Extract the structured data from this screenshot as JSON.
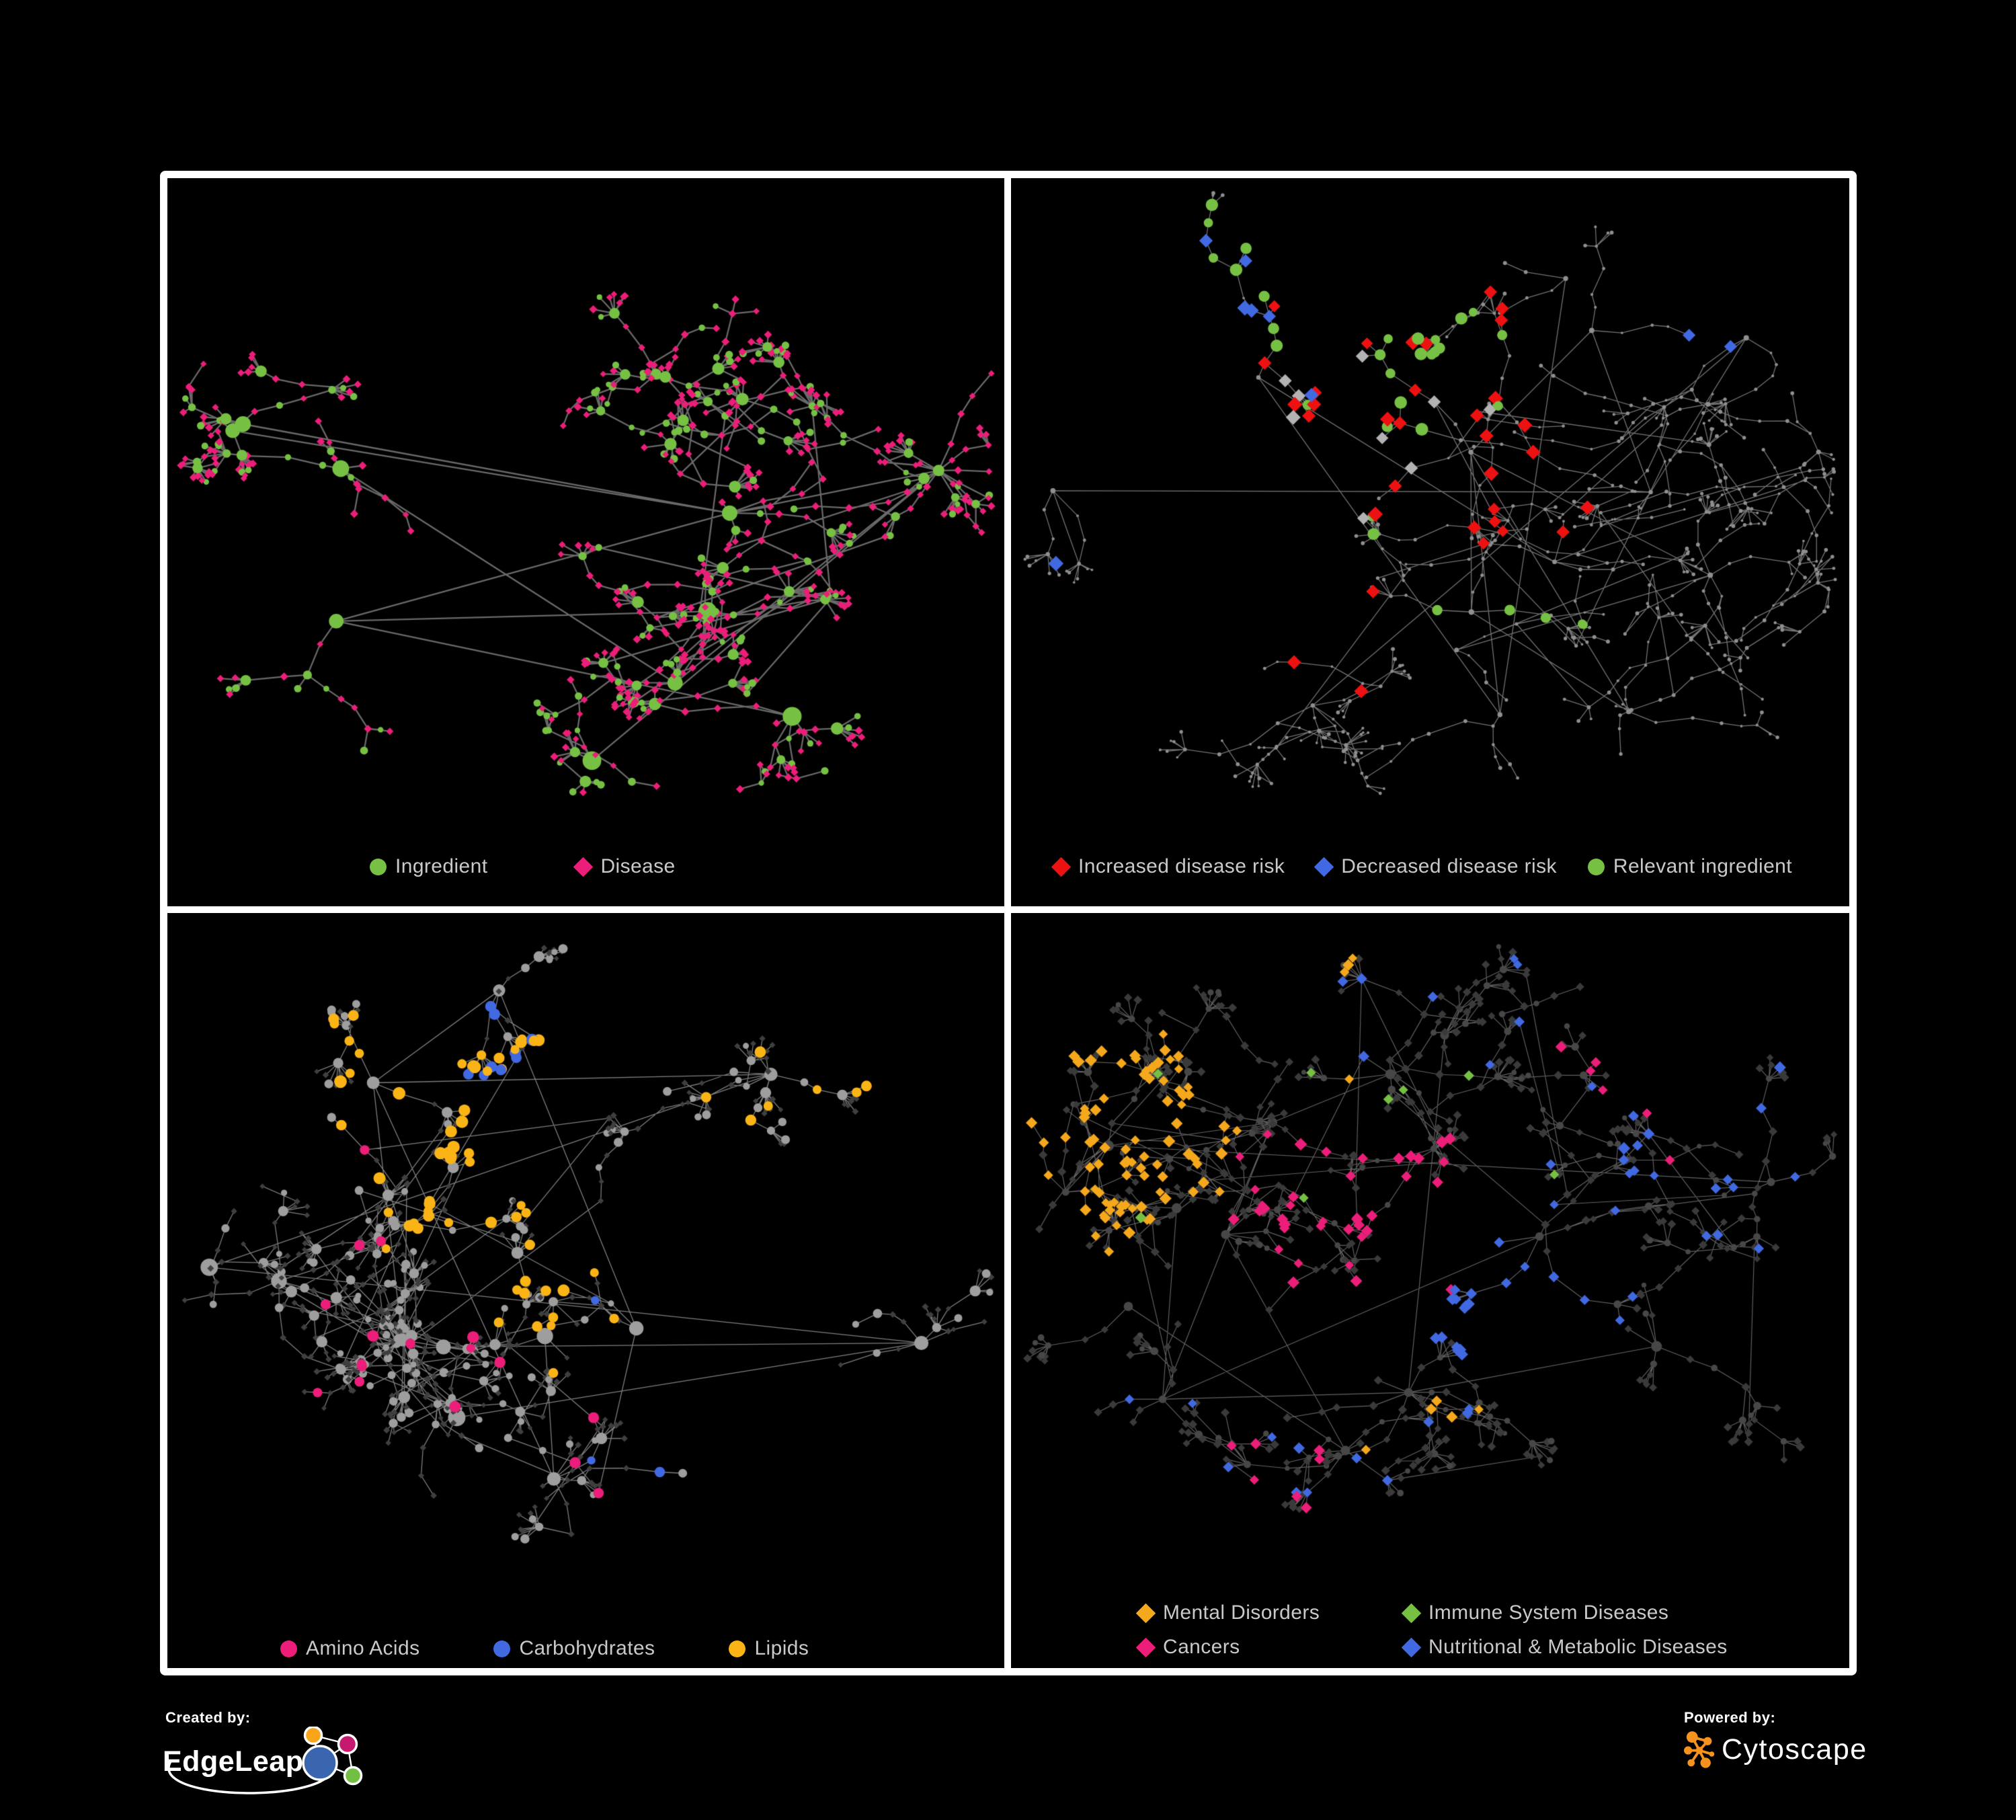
{
  "page": {
    "background": "#000000",
    "frame_color": "#ffffff",
    "legend_text_color": "#c9c9c9"
  },
  "footer": {
    "created_by": {
      "label": "Created by:",
      "brand": "EdgeLeap",
      "node_colors": [
        "#f9a51a",
        "#c6186e",
        "#3a66b0",
        "#72bf44"
      ]
    },
    "powered_by": {
      "label": "Powered by:",
      "brand": "Cytoscape",
      "accent": "#f6921e"
    }
  },
  "chart_data": [
    {
      "type": "network",
      "panel": "top_left",
      "legend": [
        {
          "label": "Ingredient",
          "color": "#76c043",
          "shape": "circle"
        },
        {
          "label": "Disease",
          "color": "#ec1e79",
          "shape": "diamond"
        }
      ],
      "style": {
        "edge_color": "#6f6f6f",
        "edge_width": 2.3,
        "edge_alpha": 0.95
      },
      "seed": 7,
      "nodes": 650,
      "clusters": 10,
      "gen": {
        "chain": [
          1,
          4
        ],
        "fan_p": 0.6,
        "fan": [
          3,
          9
        ],
        "cross": 0.05,
        "hub_bias": 0.4
      },
      "base": {
        "hub_degree": 5,
        "hub_scale": 1.5,
        "major": {
          "shape": "circle",
          "color": "#76c043",
          "size": [
            5.5,
            9.5
          ]
        },
        "minor": [
          {
            "shape": "diamond",
            "color": "#ec1e79",
            "size": [
              3.5,
              4.6
            ],
            "w": 0.7
          },
          {
            "shape": "circle",
            "color": "#76c043",
            "size": [
              4,
              6
            ],
            "w": 0.3
          }
        ]
      },
      "highlights": []
    },
    {
      "type": "network",
      "panel": "top_right",
      "legend": [
        {
          "label": "Increased disease risk",
          "color": "#ee1111",
          "shape": "diamond"
        },
        {
          "label": "Decreased disease risk",
          "color": "#4169e1",
          "shape": "diamond"
        },
        {
          "label": "Relevant ingredient",
          "color": "#76c043",
          "shape": "circle"
        }
      ],
      "style": {
        "edge_color": "#8f8f8f",
        "edge_width": 1.3,
        "edge_alpha": 0.8
      },
      "seed": 23,
      "nodes": 640,
      "clusters": 14,
      "gen": {
        "chain": [
          2,
          5
        ],
        "fan_p": 0.5,
        "fan": [
          3,
          9
        ],
        "cross": 0.05,
        "hub_bias": 0.32
      },
      "base": {
        "hub_degree": 6,
        "hub_scale": 1.3,
        "major": {
          "shape": "circle",
          "color": "#8f8f8f",
          "size": [
            2.4,
            3.6
          ]
        },
        "minor": [
          {
            "shape": "circle",
            "color": "#8f8f8f",
            "size": [
              1.8,
              3
            ],
            "w": 1
          }
        ]
      },
      "highlights": [
        {
          "shape": "diamond",
          "color": "#ee1111",
          "size": [
            6.5,
            8.5
          ],
          "count": 26,
          "center": [
            0.4,
            0.3
          ],
          "spread": 0.24
        },
        {
          "shape": "diamond",
          "color": "#ee1111",
          "size": [
            6.5,
            8
          ],
          "count": 4,
          "center": [
            0.6,
            0.5
          ],
          "spread": 0.1
        },
        {
          "shape": "diamond",
          "color": "#ee1111",
          "size": [
            6.5,
            8
          ],
          "count": 3,
          "center": [
            0.38,
            0.62
          ],
          "spread": 0.08
        },
        {
          "shape": "diamond",
          "color": "#4169e1",
          "size": [
            6.5,
            8.5
          ],
          "count": 7,
          "center": [
            0.16,
            0.27
          ],
          "spread": 0.1
        },
        {
          "shape": "diamond",
          "color": "#4169e1",
          "size": [
            6.5,
            8
          ],
          "count": 2,
          "center": [
            0.875,
            0.17
          ],
          "spread": 0.035
        },
        {
          "shape": "diamond",
          "color": "#b3b3b3",
          "size": [
            6.5,
            8.5
          ],
          "count": 9,
          "center": [
            0.33,
            0.33
          ],
          "spread": 0.26
        },
        {
          "shape": "circle",
          "color": "#76c043",
          "size": [
            6.5,
            9.5
          ],
          "count": 27,
          "center": [
            0.34,
            0.27
          ],
          "spread": 0.24
        },
        {
          "shape": "circle",
          "color": "#76c043",
          "size": [
            6,
            8.5
          ],
          "count": 5,
          "center": [
            0.6,
            0.6
          ],
          "spread": 0.12
        }
      ]
    },
    {
      "type": "network",
      "panel": "bottom_left",
      "legend": [
        {
          "label": "Amino Acids",
          "color": "#ec1e79",
          "shape": "circle"
        },
        {
          "label": "Carbohydrates",
          "color": "#4169e1",
          "shape": "circle"
        },
        {
          "label": "Lipids",
          "color": "#fbb415",
          "shape": "circle"
        }
      ],
      "style": {
        "edge_color": "#a8a8a8",
        "edge_width": 1.3,
        "edge_alpha": 0.75
      },
      "seed": 41,
      "nodes": 700,
      "clusters": 12,
      "gen": {
        "chain": [
          1,
          4
        ],
        "fan_p": 0.55,
        "fan": [
          3,
          10
        ],
        "cross": 0.08,
        "hub_bias": 0.36
      },
      "base": {
        "hub_degree": 5,
        "hub_scale": 1.5,
        "major": {
          "shape": "circle",
          "color": "#9e9e9e",
          "size": [
            6,
            9
          ]
        },
        "minor": [
          {
            "shape": "diamond",
            "color": "#3f3f3f",
            "size": [
              2.8,
              3.8
            ],
            "w": 0.74
          },
          {
            "shape": "circle",
            "color": "#9e9e9e",
            "size": [
              4.5,
              7
            ],
            "w": 0.26
          }
        ]
      },
      "highlights": [
        {
          "shape": "circle",
          "color": "#fbb415",
          "size": [
            6.5,
            9.5
          ],
          "count": 46,
          "center": [
            0.32,
            0.24
          ],
          "spread": 0.2
        },
        {
          "shape": "circle",
          "color": "#fbb415",
          "size": [
            6.5,
            9
          ],
          "count": 13,
          "center": [
            0.52,
            0.52
          ],
          "spread": 0.13
        },
        {
          "shape": "circle",
          "color": "#fbb415",
          "size": [
            6,
            8.5
          ],
          "count": 7,
          "center": [
            0.75,
            0.3
          ],
          "spread": 0.2
        },
        {
          "shape": "circle",
          "color": "#4169e1",
          "size": [
            6.5,
            9
          ],
          "count": 10,
          "center": [
            0.4,
            0.2
          ],
          "spread": 0.09
        },
        {
          "shape": "circle",
          "color": "#4169e1",
          "size": [
            6,
            8
          ],
          "count": 3,
          "center": [
            0.62,
            0.6
          ],
          "spread": 0.12
        },
        {
          "shape": "circle",
          "color": "#ec1e79",
          "size": [
            6.5,
            9
          ],
          "count": 13,
          "center": [
            0.45,
            0.62
          ],
          "spread": 0.38
        },
        {
          "shape": "circle",
          "color": "#ec1e79",
          "size": [
            6,
            8.5
          ],
          "count": 4,
          "center": [
            0.12,
            0.4
          ],
          "spread": 0.18
        }
      ]
    },
    {
      "type": "network",
      "panel": "bottom_right",
      "legend": [
        {
          "label": "Mental Disorders",
          "color": "#f5a81c",
          "shape": "diamond"
        },
        {
          "label": "Immune System Diseases",
          "color": "#76c043",
          "shape": "diamond"
        },
        {
          "label": "Cancers",
          "color": "#ec1e79",
          "shape": "diamond"
        },
        {
          "label": "Nutritional & Metabolic Diseases",
          "color": "#4169e1",
          "shape": "diamond"
        }
      ],
      "style": {
        "edge_color": "#8d8d8d",
        "edge_width": 1.15,
        "edge_alpha": 0.7
      },
      "seed": 59,
      "nodes": 840,
      "clusters": 14,
      "gen": {
        "chain": [
          1,
          4
        ],
        "fan_p": 0.5,
        "fan": [
          3,
          9
        ],
        "cross": 0.08,
        "hub_bias": 0.34
      },
      "base": {
        "hub_degree": 5,
        "hub_scale": 1.35,
        "major": {
          "shape": "circle",
          "color": "#474747",
          "size": [
            4,
            6
          ]
        },
        "minor": [
          {
            "shape": "diamond",
            "color": "#3a3a3a",
            "size": [
              3.8,
              5
            ],
            "w": 0.85
          },
          {
            "shape": "circle",
            "color": "#474747",
            "size": [
              3.5,
              5
            ],
            "w": 0.15
          }
        ]
      },
      "highlights": [
        {
          "shape": "diamond",
          "color": "#f5a81c",
          "size": [
            5,
            7
          ],
          "count": 78,
          "center": [
            0.14,
            0.3
          ],
          "spread": 0.15
        },
        {
          "shape": "diamond",
          "color": "#f5a81c",
          "size": [
            5,
            6.5
          ],
          "count": 10,
          "center": [
            0.3,
            0.1
          ],
          "spread": 0.22
        },
        {
          "shape": "diamond",
          "color": "#f5a81c",
          "size": [
            5,
            6.5
          ],
          "count": 5,
          "center": [
            0.55,
            0.72
          ],
          "spread": 0.2
        },
        {
          "shape": "diamond",
          "color": "#ec1e79",
          "size": [
            5,
            7
          ],
          "count": 40,
          "center": [
            0.42,
            0.4
          ],
          "spread": 0.16
        },
        {
          "shape": "diamond",
          "color": "#ec1e79",
          "size": [
            5,
            6.5
          ],
          "count": 6,
          "center": [
            0.76,
            0.16
          ],
          "spread": 0.05
        },
        {
          "shape": "diamond",
          "color": "#ec1e79",
          "size": [
            5,
            6.5
          ],
          "count": 7,
          "center": [
            0.28,
            0.78
          ],
          "spread": 0.16
        },
        {
          "shape": "diamond",
          "color": "#4169e1",
          "size": [
            5,
            7
          ],
          "count": 24,
          "center": [
            0.6,
            0.52
          ],
          "spread": 0.11
        },
        {
          "shape": "diamond",
          "color": "#4169e1",
          "size": [
            5,
            7
          ],
          "count": 20,
          "center": [
            0.8,
            0.28
          ],
          "spread": 0.18
        },
        {
          "shape": "diamond",
          "color": "#4169e1",
          "size": [
            5,
            6.5
          ],
          "count": 10,
          "center": [
            0.3,
            0.7
          ],
          "spread": 0.2
        },
        {
          "shape": "diamond",
          "color": "#4169e1",
          "size": [
            5,
            6.5
          ],
          "count": 8,
          "center": [
            0.48,
            0.08
          ],
          "spread": 0.22
        },
        {
          "shape": "diamond",
          "color": "#76c043",
          "size": [
            5,
            6.5
          ],
          "count": 8,
          "center": [
            0.42,
            0.38
          ],
          "spread": 0.3
        }
      ]
    }
  ]
}
